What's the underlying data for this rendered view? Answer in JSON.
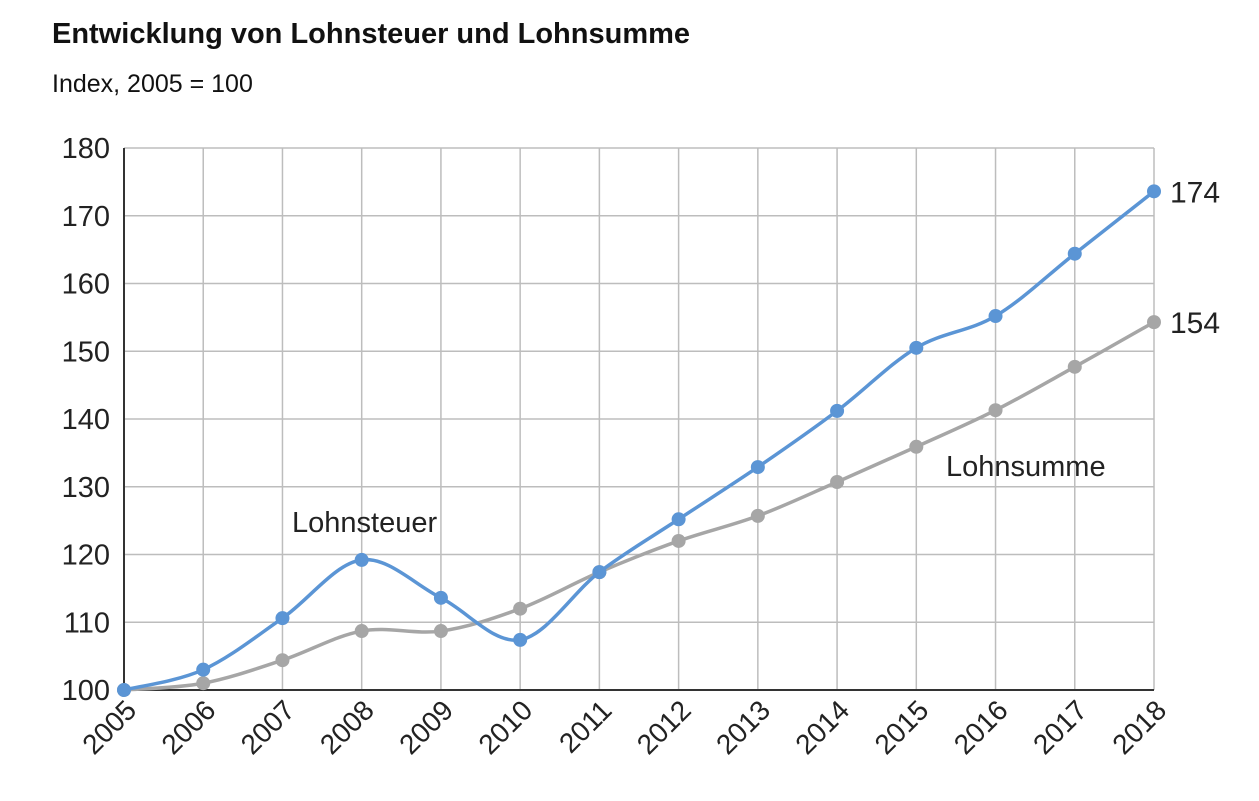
{
  "chart_data": {
    "type": "line",
    "title": "Entwicklung von Lohnsteuer und Lohnsumme",
    "subtitle": "Index, 2005 = 100",
    "x": [
      2005,
      2006,
      2007,
      2008,
      2009,
      2010,
      2011,
      2012,
      2013,
      2014,
      2015,
      2016,
      2017,
      2018
    ],
    "ylim": [
      100,
      180
    ],
    "yticks": [
      100,
      110,
      120,
      130,
      140,
      150,
      160,
      170,
      180
    ],
    "grid": true,
    "series": [
      {
        "name": "Lohnsteuer",
        "color": "#5b95d5",
        "values": [
          100,
          103,
          110.6,
          119.2,
          113.6,
          107.4,
          117.4,
          125.2,
          132.9,
          141.2,
          150.5,
          155.2,
          164.4,
          173.6
        ],
        "end_label": "174"
      },
      {
        "name": "Lohnsumme",
        "color": "#a6a6a6",
        "values": [
          100,
          101,
          104.4,
          108.7,
          108.7,
          112,
          117.4,
          122,
          125.7,
          130.7,
          135.9,
          141.3,
          147.7,
          154.3
        ],
        "end_label": "154"
      }
    ]
  }
}
